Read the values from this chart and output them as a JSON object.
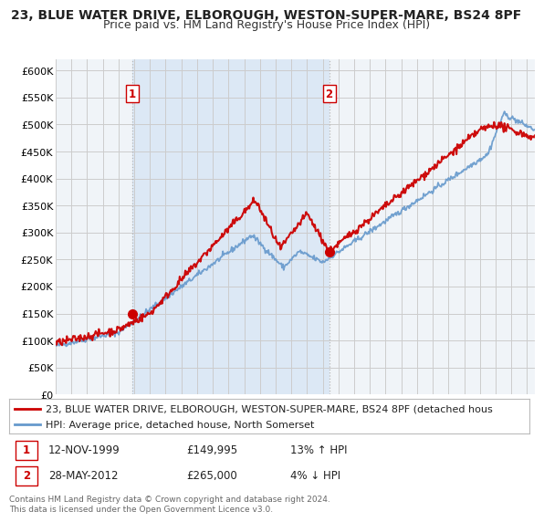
{
  "title": "23, BLUE WATER DRIVE, ELBOROUGH, WESTON-SUPER-MARE, BS24 8PF",
  "subtitle": "Price paid vs. HM Land Registry's House Price Index (HPI)",
  "ylim": [
    0,
    620000
  ],
  "yticks": [
    0,
    50000,
    100000,
    150000,
    200000,
    250000,
    300000,
    350000,
    400000,
    450000,
    500000,
    550000,
    600000
  ],
  "ytick_labels": [
    "£0",
    "£50K",
    "£100K",
    "£150K",
    "£200K",
    "£250K",
    "£300K",
    "£350K",
    "£400K",
    "£450K",
    "£500K",
    "£550K",
    "£600K"
  ],
  "background_color": "#ffffff",
  "grid_color": "#cccccc",
  "plot_bg_color": "#f0f4f8",
  "shade_color": "#dce8f5",
  "sale1_date": 1999.87,
  "sale1_price": 149995,
  "sale2_date": 2012.41,
  "sale2_price": 265000,
  "vline_color": "#aaaaaa",
  "vline_style": ":",
  "legend_red": "23, BLUE WATER DRIVE, ELBOROUGH, WESTON-SUPER-MARE, BS24 8PF (detached hous",
  "legend_blue": "HPI: Average price, detached house, North Somerset",
  "footer": "Contains HM Land Registry data © Crown copyright and database right 2024.\nThis data is licensed under the Open Government Licence v3.0.",
  "red_color": "#cc0000",
  "blue_color": "#6699cc",
  "marker_color": "#cc0000",
  "box_color": "#cc0000",
  "title_fontsize": 10,
  "subtitle_fontsize": 9,
  "tick_fontsize": 8,
  "legend_fontsize": 8,
  "annot_fontsize": 8.5,
  "footer_fontsize": 6.5,
  "xlim_left": 1995.0,
  "xlim_right": 2025.5
}
